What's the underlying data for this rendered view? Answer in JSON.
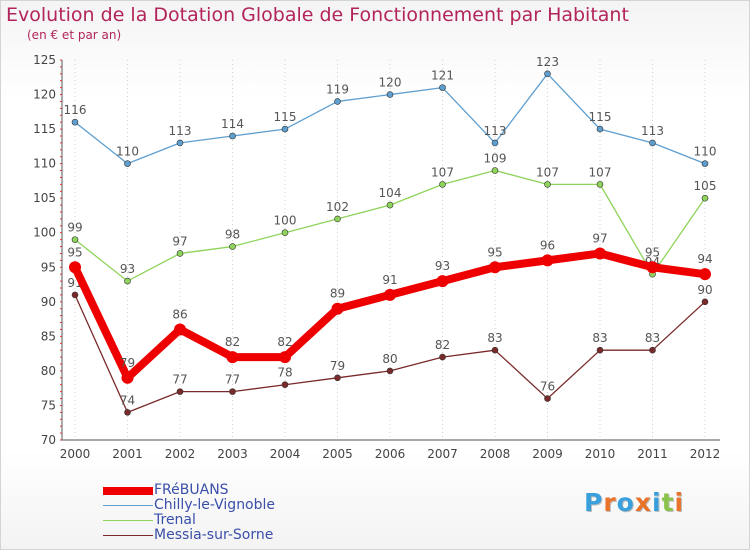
{
  "chart_data": {
    "type": "line",
    "title": "Evolution de la Dotation Globale de Fonctionnement par Habitant",
    "subtitle": "(en € et par an)",
    "x": [
      "2000",
      "2001",
      "2002",
      "2003",
      "2004",
      "2005",
      "2006",
      "2007",
      "2008",
      "2009",
      "2010",
      "2011",
      "2012"
    ],
    "ylim": [
      70,
      125
    ],
    "yticks": [
      70,
      75,
      80,
      85,
      90,
      95,
      100,
      105,
      110,
      115,
      120,
      125
    ],
    "series": [
      {
        "name": "FRéBUANS",
        "color": "#ee0000",
        "highlight": true,
        "values": [
          95,
          79,
          86,
          82,
          82,
          89,
          91,
          93,
          95,
          96,
          97,
          95,
          94
        ]
      },
      {
        "name": "Chilly-le-Vignoble",
        "color": "#5f9fd0",
        "highlight": false,
        "values": [
          116,
          110,
          113,
          114,
          115,
          119,
          120,
          121,
          113,
          123,
          115,
          113,
          110
        ]
      },
      {
        "name": "Trenal",
        "color": "#8ed35a",
        "highlight": false,
        "values": [
          99,
          93,
          97,
          98,
          100,
          102,
          104,
          107,
          109,
          107,
          107,
          94,
          105
        ]
      },
      {
        "name": "Messia-sur-Sorne",
        "color": "#7a2a2a",
        "highlight": false,
        "values": [
          91,
          74,
          77,
          77,
          78,
          79,
          80,
          82,
          83,
          76,
          83,
          83,
          90
        ]
      }
    ]
  },
  "legend": {
    "label_color": "#3a4fa8",
    "items": [
      "FRéBUANS",
      "Chilly-le-Vignoble",
      "Trenal",
      "Messia-sur-Sorne"
    ]
  },
  "logo": {
    "letters": [
      "P",
      "r",
      "o",
      "x",
      "i",
      "t",
      "i"
    ],
    "colors": [
      "#3aa0dd",
      "#e8732a",
      "#3aa0dd",
      "#e8732a",
      "#3aa0dd",
      "#8bc34a",
      "#e8732a"
    ]
  }
}
